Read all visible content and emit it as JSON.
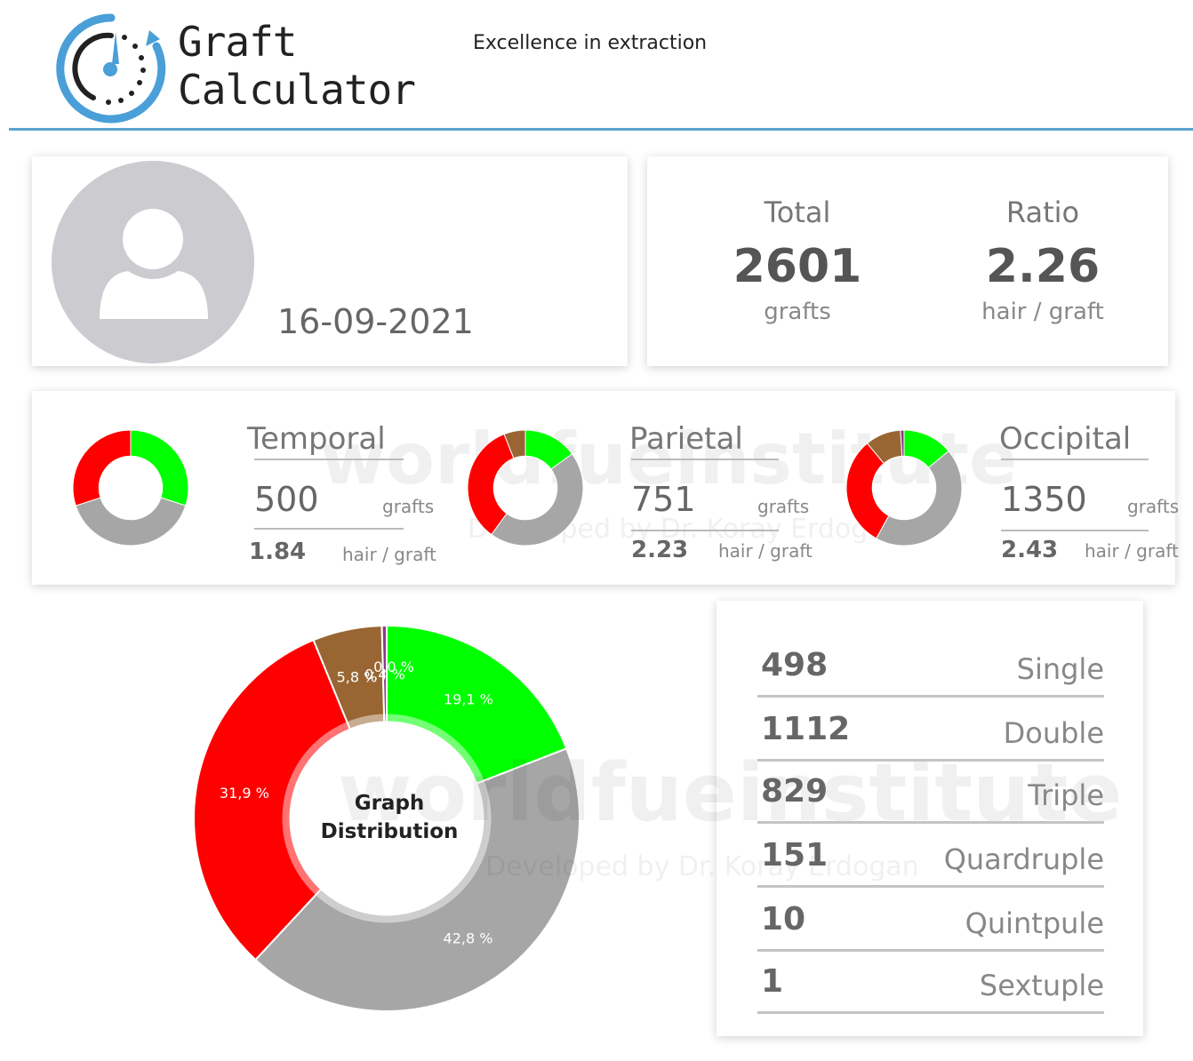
{
  "header": {
    "brand_line1": "Graft",
    "brand_line2": "Calculator",
    "tagline": "Excellence in extraction"
  },
  "profile": {
    "date": "16-09-2021",
    "avatar_icon": "user-avatar-icon"
  },
  "totals": {
    "total_label": "Total",
    "total_value": "2601",
    "total_unit": "grafts",
    "ratio_label": "Ratio",
    "ratio_value": "2.26",
    "ratio_unit": "hair / graft"
  },
  "regions": [
    {
      "name": "Temporal",
      "grafts": "500",
      "grafts_unit": "grafts",
      "ratio": "1.84",
      "ratio_unit": "hair / graft"
    },
    {
      "name": "Parietal",
      "grafts": "751",
      "grafts_unit": "grafts",
      "ratio": "2.23",
      "ratio_unit": "hair / graft"
    },
    {
      "name": "Occipital",
      "grafts": "1350",
      "grafts_unit": "grafts",
      "ratio": "2.43",
      "ratio_unit": "hair / graft"
    }
  ],
  "distribution_table": [
    {
      "value": "498",
      "label": "Single"
    },
    {
      "value": "1112",
      "label": "Double"
    },
    {
      "value": "829",
      "label": "Triple"
    },
    {
      "value": "151",
      "label": "Quardruple"
    },
    {
      "value": "10",
      "label": "Quintpule"
    },
    {
      "value": "1",
      "label": "Sextuple"
    }
  ],
  "watermark": {
    "main": "worldfueinstitute",
    "sub": "Developed by Dr. Koray Erdogan"
  },
  "colors": {
    "green": "#00ff00",
    "gray": "#a6a6a6",
    "red": "#ff0000",
    "brown": "#996633",
    "purple": "#8b3a8b",
    "accent": "#5ba4cc"
  },
  "chart_data": [
    {
      "type": "pie",
      "title": "Graph Distribution",
      "categories": [
        "Single",
        "Double",
        "Triple",
        "Quardruple",
        "Quintpule",
        "Sextuple"
      ],
      "values": [
        19.1,
        42.8,
        31.9,
        5.8,
        0.4,
        0.0
      ],
      "labels": [
        "19,1 %",
        "42,8 %",
        "31,9 %",
        "5,8 %",
        "0,4 %",
        "0,0 %"
      ]
    },
    {
      "type": "pie",
      "title": "",
      "categories": [
        "Single",
        "Double",
        "Triple",
        "Quardruple"
      ],
      "values": [
        30,
        40,
        30,
        0
      ]
    },
    {
      "type": "pie",
      "title": "",
      "categories": [
        "Single",
        "Double",
        "Triple",
        "Quardruple"
      ],
      "values": [
        15,
        45,
        34,
        6
      ]
    },
    {
      "type": "pie",
      "title": "",
      "categories": [
        "Single",
        "Double",
        "Triple",
        "Quardruple",
        "Quintpule"
      ],
      "values": [
        14,
        44,
        31,
        10,
        1
      ]
    }
  ]
}
